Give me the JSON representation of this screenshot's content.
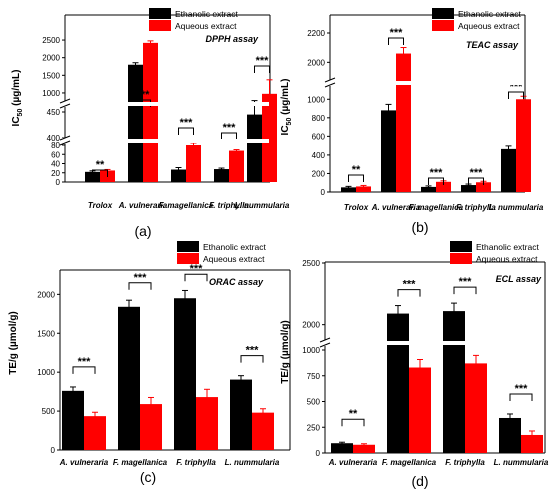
{
  "colors": {
    "ethanolic": "#000000",
    "aqueous": "#ff0000"
  },
  "legend": {
    "ethanolic": "Ethanolic extract",
    "aqueous": "Aqueous extract"
  },
  "chart_data": [
    {
      "type": "bar",
      "panel_label": "(a)",
      "assay_title": "DPPH assay",
      "ylabel": "IC50 (µg/mL)",
      "ylabel_main": "IC",
      "ylabel_sub": "50",
      "ylabel_rest": " (µg/mL)",
      "axis_break": true,
      "categories": [
        "Trolox",
        "A. vulneraria",
        "F. magellanica",
        "F. triphylla",
        "L. nummularia"
      ],
      "series": [
        {
          "name": "Ethanolic extract",
          "values": [
            22,
            1800,
            27,
            28,
            445
          ]
        },
        {
          "name": "Aqueous extract",
          "values": [
            25,
            2420,
            80,
            68,
            975
          ]
        }
      ],
      "significance": [
        "**",
        "***",
        "***",
        "***",
        "***"
      ],
      "yticks": [
        "0",
        "20",
        "40",
        "60",
        "80",
        "400",
        "450",
        "1000",
        "1500",
        "2000",
        "2500"
      ],
      "legend_position": "top"
    },
    {
      "type": "bar",
      "panel_label": "(b)",
      "assay_title": "TEAC assay",
      "ylabel": "IC50 (µg/mL)",
      "ylabel_main": "IC",
      "ylabel_sub": "50",
      "ylabel_rest": " (µg/mL)",
      "axis_break": true,
      "categories": [
        "Trolox",
        "A. vulneraria",
        "F. magellanica",
        "F. triphylla",
        "L. nummularia"
      ],
      "series": [
        {
          "name": "Ethanolic extract",
          "values": [
            50,
            880,
            55,
            75,
            465
          ]
        },
        {
          "name": "Aqueous extract",
          "values": [
            60,
            2060,
            110,
            105,
            1000
          ]
        }
      ],
      "significance": [
        "**",
        "***",
        "***",
        "***",
        "***"
      ],
      "yticks": [
        "0",
        "200",
        "400",
        "600",
        "800",
        "1000",
        "2000",
        "2200"
      ],
      "legend_position": "top-right"
    },
    {
      "type": "bar",
      "panel_label": "(c)",
      "assay_title": "ORAC assay",
      "ylabel": "TE/g (µmol/g)",
      "axis_break": false,
      "ylim": [
        0,
        2300
      ],
      "categories": [
        "A. vulneraria",
        "F. magellanica",
        "F. triphylla",
        "L. nummularia"
      ],
      "series": [
        {
          "name": "Ethanolic extract",
          "values": [
            760,
            1840,
            1950,
            905
          ]
        },
        {
          "name": "Aqueous extract",
          "values": [
            435,
            590,
            680,
            480
          ]
        }
      ],
      "significance": [
        "***",
        "***",
        "***",
        "***"
      ],
      "yticks": [
        "0",
        "500",
        "1000",
        "1500",
        "2000"
      ],
      "legend_position": "top-right"
    },
    {
      "type": "bar",
      "panel_label": "(d)",
      "assay_title": "ECL assay",
      "ylabel": "TE/g (µmol/g)",
      "axis_break": true,
      "categories": [
        "A. vulneraria",
        "F. magellanica",
        "F. triphylla",
        "L. nummularia"
      ],
      "series": [
        {
          "name": "Ethanolic extract",
          "values": [
            95,
            2090,
            2110,
            340
          ]
        },
        {
          "name": "Aqueous extract",
          "values": [
            80,
            830,
            870,
            175
          ]
        }
      ],
      "significance": [
        "**",
        "***",
        "***",
        "***"
      ],
      "yticks": [
        "0",
        "250",
        "500",
        "750",
        "1000",
        "2000",
        "2500"
      ],
      "legend_position": "top-right"
    }
  ]
}
